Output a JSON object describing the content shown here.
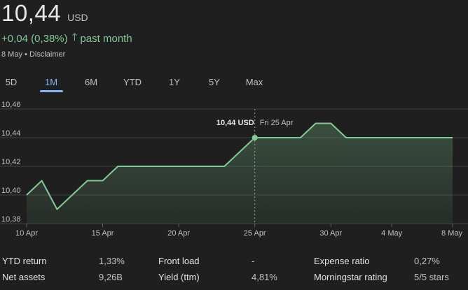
{
  "header": {
    "price": "10,44",
    "currency": "USD",
    "change": "+0,04 (0,38%)",
    "period": "past month",
    "date": "8 May",
    "separator": "•",
    "disclaimer": "Disclaimer"
  },
  "tabs": [
    {
      "label": "5D"
    },
    {
      "label": "1M",
      "active": true
    },
    {
      "label": "6M"
    },
    {
      "label": "YTD"
    },
    {
      "label": "1Y"
    },
    {
      "label": "5Y"
    },
    {
      "label": "Max"
    }
  ],
  "colors": {
    "accent": "#8ab4f8",
    "positive": "#81c995",
    "background": "#1f1f1f"
  },
  "chart_data": {
    "type": "area",
    "x": [
      "10 Apr",
      "11 Apr",
      "12 Apr",
      "13 Apr",
      "14 Apr",
      "15 Apr",
      "16 Apr",
      "17 Apr",
      "18 Apr",
      "19 Apr",
      "20 Apr",
      "21 Apr",
      "22 Apr",
      "23 Apr",
      "24 Apr",
      "25 Apr",
      "26 Apr",
      "27 Apr",
      "28 Apr",
      "29 Apr",
      "30 Apr",
      "1 May",
      "2 May",
      "3 May",
      "4 May",
      "5 May",
      "6 May",
      "7 May",
      "8 May"
    ],
    "values": [
      10.4,
      10.41,
      10.39,
      10.4,
      10.41,
      10.41,
      10.42,
      10.42,
      10.42,
      10.42,
      10.42,
      10.42,
      10.42,
      10.42,
      10.43,
      10.44,
      10.44,
      10.44,
      10.44,
      10.45,
      10.45,
      10.44,
      10.44,
      10.44,
      10.44,
      10.44,
      10.44,
      10.44,
      10.44
    ],
    "xticks": [
      "10 Apr",
      "15 Apr",
      "20 Apr",
      "25 Apr",
      "30 Apr",
      "4 May",
      "8 May"
    ],
    "yticks": [
      "10,38",
      "10,40",
      "10,42",
      "10,44",
      "10,46"
    ],
    "ylim": [
      10.38,
      10.46
    ],
    "grid": true,
    "tooltip": {
      "value": "10,44 USD",
      "date": "Fri 25 Apr",
      "index": 15
    }
  },
  "stats": [
    {
      "label": "YTD return",
      "value": "1,33%"
    },
    {
      "label": "Front load",
      "value": "-"
    },
    {
      "label": "Expense ratio",
      "value": "0,27%"
    },
    {
      "label": "Net assets",
      "value": "9,26B"
    },
    {
      "label": "Yield (ttm)",
      "value": "4,81%"
    },
    {
      "label": "Morningstar rating",
      "value": "5/5 stars"
    }
  ]
}
